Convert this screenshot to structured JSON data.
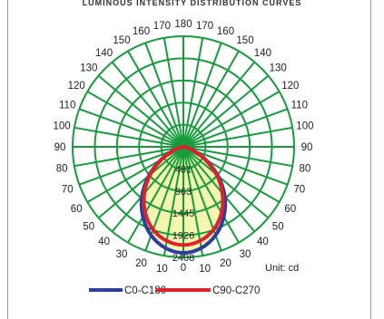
{
  "chart_data": {
    "type": "polar-luminous-intensity",
    "title": "LUMINOUS INTENSITY DISTRIBUTION CURVES",
    "unit_label": "Unit: cd",
    "angle_labels": [
      {
        "angle": 0,
        "label": "0"
      },
      {
        "angle": 10,
        "label": "10"
      },
      {
        "angle": -10,
        "label": "10"
      },
      {
        "angle": 20,
        "label": "20"
      },
      {
        "angle": -20,
        "label": "20"
      },
      {
        "angle": 30,
        "label": "30"
      },
      {
        "angle": -30,
        "label": "30"
      },
      {
        "angle": 40,
        "label": "40"
      },
      {
        "angle": -40,
        "label": "40"
      },
      {
        "angle": 50,
        "label": "50"
      },
      {
        "angle": -50,
        "label": "50"
      },
      {
        "angle": 60,
        "label": "60"
      },
      {
        "angle": -60,
        "label": "60"
      },
      {
        "angle": 70,
        "label": "70"
      },
      {
        "angle": -70,
        "label": "70"
      },
      {
        "angle": 80,
        "label": "80"
      },
      {
        "angle": -80,
        "label": "80"
      },
      {
        "angle": 90,
        "label": "90"
      },
      {
        "angle": -90,
        "label": "90"
      },
      {
        "angle": 100,
        "label": "100"
      },
      {
        "angle": -100,
        "label": "100"
      },
      {
        "angle": 110,
        "label": "110"
      },
      {
        "angle": -110,
        "label": "110"
      },
      {
        "angle": 120,
        "label": "120"
      },
      {
        "angle": -120,
        "label": "120"
      },
      {
        "angle": 130,
        "label": "130"
      },
      {
        "angle": -130,
        "label": "130"
      },
      {
        "angle": 140,
        "label": "140"
      },
      {
        "angle": -140,
        "label": "140"
      },
      {
        "angle": 150,
        "label": "150"
      },
      {
        "angle": -150,
        "label": "150"
      },
      {
        "angle": 160,
        "label": "160"
      },
      {
        "angle": -160,
        "label": "160"
      },
      {
        "angle": 170,
        "label": "170"
      },
      {
        "angle": -170,
        "label": "170"
      },
      {
        "angle": 180,
        "label": "180"
      }
    ],
    "radial_ticks": [
      481,
      963,
      1445,
      1926,
      2408
    ],
    "rmax": 2408,
    "series": [
      {
        "name": "C0-C180",
        "color": "#2e3ea0",
        "angles": [
          0,
          10,
          20,
          30,
          40,
          50,
          60,
          70,
          80,
          90
        ],
        "values": [
          2310,
          2240,
          2050,
          1760,
          1400,
          980,
          560,
          230,
          60,
          0
        ]
      },
      {
        "name": "C90-C270",
        "color": "#e0202a",
        "angles": [
          0,
          10,
          20,
          30,
          40,
          50,
          60,
          70,
          80,
          90
        ],
        "values": [
          2140,
          2080,
          1920,
          1660,
          1320,
          940,
          540,
          220,
          55,
          0
        ]
      }
    ],
    "grid_color": "#169c3c",
    "fill_color": "#f4f6b0"
  }
}
